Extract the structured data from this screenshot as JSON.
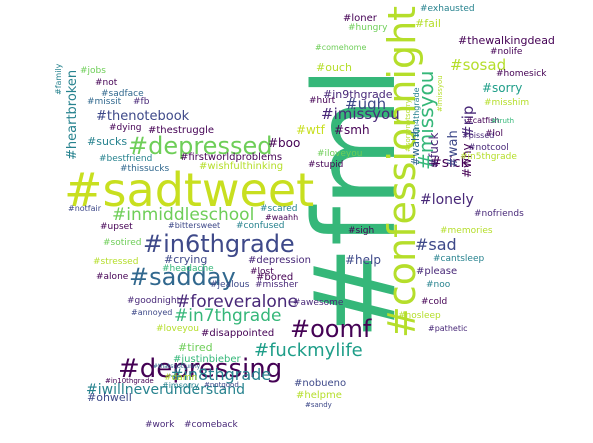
{
  "colors": {
    "background": "#ffffff",
    "palette": [
      "#440154",
      "#482878",
      "#3e4989",
      "#31688e",
      "#26828e",
      "#1f9e89",
      "#35b779",
      "#6ece58",
      "#b5de2b",
      "#c8df1f"
    ]
  },
  "words": [
    {
      "text": "#fml",
      "color": "#35b779"
    },
    {
      "text": "#sadtweet",
      "color": "#c8df1f"
    },
    {
      "text": "#confessionnight",
      "color": "#b5de2b"
    },
    {
      "text": "#depressing",
      "color": "#440154"
    },
    {
      "text": "#in6thgrade",
      "color": "#3e4989"
    },
    {
      "text": "#depressed",
      "color": "#6ece58"
    },
    {
      "text": "#sadday",
      "color": "#31688e"
    },
    {
      "text": "#oomf",
      "color": "#440154"
    },
    {
      "text": "#fuckmylife",
      "color": "#1f9e89"
    },
    {
      "text": "#inmiddleschool",
      "color": "#6ece58"
    },
    {
      "text": "#foreveralone",
      "color": "#482878"
    },
    {
      "text": "#in7thgrade",
      "color": "#35b779"
    },
    {
      "text": "#in8thgrade",
      "color": "#26828e"
    },
    {
      "text": "#iwillneverunderstand",
      "color": "#26828e"
    },
    {
      "text": "#missyou",
      "color": "#35b779"
    },
    {
      "text": "#imissyou",
      "color": "#482878"
    },
    {
      "text": "#sosad",
      "color": "#b5de2b"
    },
    {
      "text": "#sad",
      "color": "#3e4989"
    },
    {
      "text": "#sick",
      "color": "#440154"
    },
    {
      "text": "#lonely",
      "color": "#482878"
    },
    {
      "text": "#ugh",
      "color": "#3e4989"
    },
    {
      "text": "#thenotebook",
      "color": "#3e4989"
    },
    {
      "text": "#heartbroken",
      "color": "#26828e"
    },
    {
      "text": "#fuck",
      "color": "#482878"
    },
    {
      "text": "#wah",
      "color": "#3e4989"
    },
    {
      "text": "#rip",
      "color": "#482878"
    },
    {
      "text": "#smh",
      "color": "#440154"
    },
    {
      "text": "#wtf",
      "color": "#c8df1f"
    },
    {
      "text": "#sorry",
      "color": "#1f9e89"
    },
    {
      "text": "#crying",
      "color": "#3e4989"
    },
    {
      "text": "#wahh",
      "color": "#31688e"
    },
    {
      "text": "#in9thgrade",
      "color": "#482878"
    },
    {
      "text": "#thewalkingdead",
      "color": "#440154"
    },
    {
      "text": "#ouch",
      "color": "#b5de2b"
    },
    {
      "text": "#help",
      "color": "#3e4989"
    },
    {
      "text": "#tired",
      "color": "#6ece58"
    },
    {
      "text": "#boo",
      "color": "#440154"
    },
    {
      "text": "#sucks",
      "color": "#26828e"
    },
    {
      "text": "#fail",
      "color": "#b5de2b"
    },
    {
      "text": "#why",
      "color": "#440154"
    },
    {
      "text": "#please",
      "color": "#482878"
    },
    {
      "text": "#exhausted",
      "color": "#26828e"
    },
    {
      "text": "#wishfulthinking",
      "color": "#b5de2b"
    },
    {
      "text": "#firstworldproblems",
      "color": "#440154"
    },
    {
      "text": "#thestruggle",
      "color": "#440154"
    },
    {
      "text": "#missit",
      "color": "#31688e"
    },
    {
      "text": "#fb",
      "color": "#482878"
    },
    {
      "text": "#sadface",
      "color": "#31688e"
    },
    {
      "text": "#not",
      "color": "#440154"
    },
    {
      "text": "#jobs",
      "color": "#6ece58"
    },
    {
      "text": "#family",
      "color": "#26828e"
    },
    {
      "text": "#dying",
      "color": "#440154"
    },
    {
      "text": "#bestfriend",
      "color": "#26828e"
    },
    {
      "text": "#thissucks",
      "color": "#31688e"
    },
    {
      "text": "#notfair",
      "color": "#3e4989"
    },
    {
      "text": "#upset",
      "color": "#440154"
    },
    {
      "text": "#sotired",
      "color": "#6ece58"
    },
    {
      "text": "#stressed",
      "color": "#b5de2b"
    },
    {
      "text": "#headache",
      "color": "#35b779"
    },
    {
      "text": "#alone",
      "color": "#440154"
    },
    {
      "text": "#goodnight",
      "color": "#482878"
    },
    {
      "text": "#annoyed",
      "color": "#3e4989"
    },
    {
      "text": "#loveyou",
      "color": "#b5de2b"
    },
    {
      "text": "#disappointed",
      "color": "#440154"
    },
    {
      "text": "#justinbieber",
      "color": "#35b779"
    },
    {
      "text": "#thatsnotfunny",
      "color": "#31688e"
    },
    {
      "text": "#damn",
      "color": "#b5de2b"
    },
    {
      "text": "#imsorry",
      "color": "#26828e"
    },
    {
      "text": "#notgood",
      "color": "#3e4989"
    },
    {
      "text": "#in10thgrade",
      "color": "#440154"
    },
    {
      "text": "#ohwell",
      "color": "#3e4989"
    },
    {
      "text": "#work",
      "color": "#482878"
    },
    {
      "text": "#comeback",
      "color": "#482878"
    },
    {
      "text": "#nobueno",
      "color": "#3e4989"
    },
    {
      "text": "#helpme",
      "color": "#b5de2b"
    },
    {
      "text": "#sandy",
      "color": "#3e4989"
    },
    {
      "text": "#bittersweet",
      "color": "#3e4989"
    },
    {
      "text": "#confused",
      "color": "#26828e"
    },
    {
      "text": "#scared",
      "color": "#26828e"
    },
    {
      "text": "#waahh",
      "color": "#440154"
    },
    {
      "text": "#bored",
      "color": "#440154"
    },
    {
      "text": "#jealous",
      "color": "#3e4989"
    },
    {
      "text": "#missher",
      "color": "#482878"
    },
    {
      "text": "#lost",
      "color": "#440154"
    },
    {
      "text": "#depression",
      "color": "#482878"
    },
    {
      "text": "#sigh",
      "color": "#440154"
    },
    {
      "text": "#awesome",
      "color": "#482878"
    },
    {
      "text": "#stupid",
      "color": "#440154"
    },
    {
      "text": "#iloveyou",
      "color": "#6ece58"
    },
    {
      "text": "#hurt",
      "color": "#440154"
    },
    {
      "text": "#loner",
      "color": "#440154"
    },
    {
      "text": "#hungry",
      "color": "#6ece58"
    },
    {
      "text": "#comehome",
      "color": "#6ece58"
    },
    {
      "text": "#nolife",
      "color": "#440154"
    },
    {
      "text": "#homesick",
      "color": "#440154"
    },
    {
      "text": "#misshim",
      "color": "#b5de2b"
    },
    {
      "text": "#lol",
      "color": "#440154"
    },
    {
      "text": "#catfish",
      "color": "#440154"
    },
    {
      "text": "#notcool",
      "color": "#482878"
    },
    {
      "text": "#in5thgrade",
      "color": "#b5de2b"
    },
    {
      "text": "#nofriends",
      "color": "#482878"
    },
    {
      "text": "#cantsleep",
      "color": "#26828e"
    },
    {
      "text": "#memories",
      "color": "#b5de2b"
    },
    {
      "text": "#noo",
      "color": "#26828e"
    },
    {
      "text": "#cold",
      "color": "#440154"
    },
    {
      "text": "#nosleep",
      "color": "#b5de2b"
    },
    {
      "text": "#pathetic",
      "color": "#482878"
    },
    {
      "text": "#pissed",
      "color": "#482878"
    },
    {
      "text": "#truth",
      "color": "#35b779"
    },
    {
      "text": "#in4thgrade",
      "color": "#26828e"
    },
    {
      "text": "#sorrynotsorry",
      "color": "#b5de2b"
    },
    {
      "text": "#imissyou",
      "color": "#b5de2b"
    }
  ]
}
